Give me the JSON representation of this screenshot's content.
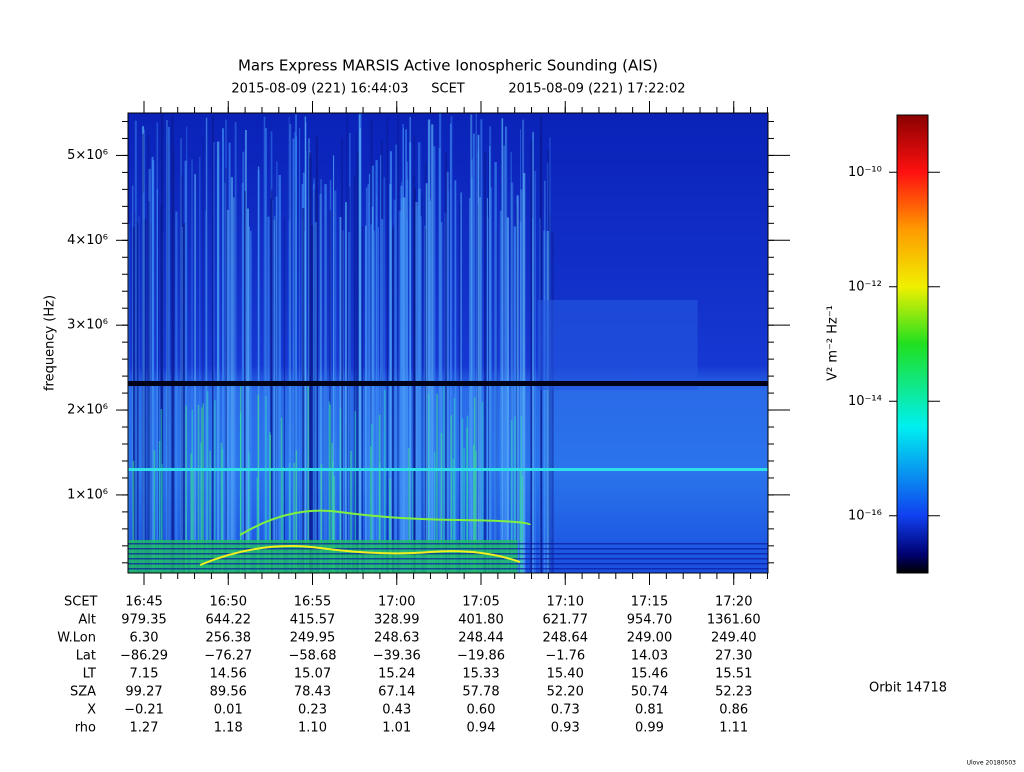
{
  "chart_data": {
    "type": "spectrogram",
    "title": "Mars Express MARSIS Active Ionospheric Sounding (AIS)",
    "start": "2015-08-09 (221) 16:44:03",
    "time_label": "SCET",
    "end": "2015-08-09 (221) 17:22:02",
    "y_label": "frequency (Hz)",
    "ylim": [
      80000,
      5500000
    ],
    "yticks": [
      {
        "value": 1000000,
        "label": "1×10⁶"
      },
      {
        "value": 2000000,
        "label": "2×10⁶"
      },
      {
        "value": 3000000,
        "label": "3×10⁶"
      },
      {
        "value": 4000000,
        "label": "4×10⁶"
      },
      {
        "value": 5000000,
        "label": "5×10⁶"
      }
    ],
    "xticks": [
      "16:45",
      "16:50",
      "16:55",
      "17:00",
      "17:05",
      "17:10",
      "17:15",
      "17:20"
    ],
    "colorbar": {
      "label": "V² m⁻² Hz⁻¹",
      "log": true,
      "lim": [
        1e-17,
        1e-09
      ],
      "ticks": [
        {
          "value": 1e-10,
          "label": "10⁻¹⁰"
        },
        {
          "value": 1e-12,
          "label": "10⁻¹²"
        },
        {
          "value": 1e-14,
          "label": "10⁻¹⁴"
        },
        {
          "value": 1e-16,
          "label": "10⁻¹⁶"
        }
      ]
    },
    "ephemeris": {
      "rows": [
        {
          "label": "Alt",
          "values": [
            "979.35",
            "644.22",
            "415.57",
            "328.99",
            "401.80",
            "621.77",
            "954.70",
            "1361.60"
          ]
        },
        {
          "label": "W.Lon",
          "values": [
            "6.30",
            "256.38",
            "249.95",
            "248.63",
            "248.44",
            "248.64",
            "249.00",
            "249.40"
          ]
        },
        {
          "label": "Lat",
          "values": [
            "−86.29",
            "−76.27",
            "−58.68",
            "−39.36",
            "−19.86",
            "−1.76",
            "14.03",
            "27.30"
          ]
        },
        {
          "label": "LT",
          "values": [
            "7.15",
            "14.56",
            "15.07",
            "15.24",
            "15.33",
            "15.40",
            "15.46",
            "15.51"
          ]
        },
        {
          "label": "SZA",
          "values": [
            "99.27",
            "89.56",
            "78.43",
            "67.14",
            "57.78",
            "52.20",
            "50.74",
            "52.23"
          ]
        },
        {
          "label": "X",
          "values": [
            "−0.21",
            "0.01",
            "0.23",
            "0.43",
            "0.60",
            "0.73",
            "0.81",
            "0.86"
          ]
        },
        {
          "label": "rho",
          "values": [
            "1.27",
            "1.18",
            "1.10",
            "1.01",
            "0.94",
            "0.93",
            "0.99",
            "1.11"
          ]
        }
      ]
    },
    "orbit": "Orbit 14718",
    "credit": "Ulove 20180503"
  }
}
